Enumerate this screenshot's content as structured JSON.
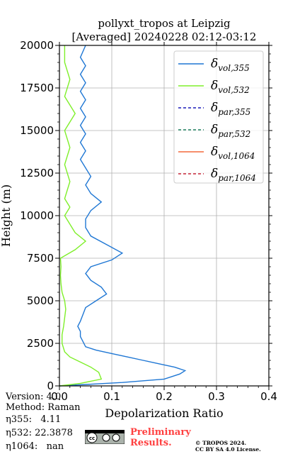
{
  "chart_data": {
    "type": "line",
    "title": "pollyxt_tropos at Leipzig",
    "subtitle": "[Averaged] 20240228 02:12-03:12",
    "xlabel": "Depolarization Ratio",
    "ylabel": "Height (m)",
    "xlim": [
      0,
      0.4
    ],
    "ylim": [
      0,
      20000
    ],
    "x_ticks": [
      "0.0",
      "0.1",
      "0.2",
      "0.3",
      "0.4"
    ],
    "y_ticks": [
      "0",
      "2500",
      "5000",
      "7500",
      "10000",
      "12500",
      "15000",
      "17500",
      "20000"
    ],
    "grid": true,
    "legend_position": "top-right",
    "series": [
      {
        "name": "vol,355",
        "color": "#1f77d4",
        "style": "solid",
        "points": [
          [
            0.0,
            0
          ],
          [
            0.12,
            200
          ],
          [
            0.2,
            400
          ],
          [
            0.23,
            700
          ],
          [
            0.24,
            900
          ],
          [
            0.22,
            1100
          ],
          [
            0.19,
            1300
          ],
          [
            0.16,
            1500
          ],
          [
            0.13,
            1700
          ],
          [
            0.1,
            1900
          ],
          [
            0.07,
            2100
          ],
          [
            0.05,
            2300
          ],
          [
            0.045,
            2600
          ],
          [
            0.04,
            2900
          ],
          [
            0.04,
            3200
          ],
          [
            0.035,
            3500
          ],
          [
            0.04,
            3800
          ],
          [
            0.045,
            4200
          ],
          [
            0.05,
            4600
          ],
          [
            0.07,
            5000
          ],
          [
            0.09,
            5400
          ],
          [
            0.08,
            5800
          ],
          [
            0.06,
            6200
          ],
          [
            0.05,
            6600
          ],
          [
            0.06,
            7000
          ],
          [
            0.1,
            7400
          ],
          [
            0.12,
            7800
          ],
          [
            0.09,
            8300
          ],
          [
            0.06,
            8800
          ],
          [
            0.05,
            9300
          ],
          [
            0.05,
            9800
          ],
          [
            0.06,
            10300
          ],
          [
            0.08,
            10800
          ],
          [
            0.06,
            11300
          ],
          [
            0.05,
            11800
          ],
          [
            0.06,
            12300
          ],
          [
            0.05,
            12800
          ],
          [
            0.04,
            13300
          ],
          [
            0.05,
            13800
          ],
          [
            0.04,
            14300
          ],
          [
            0.05,
            14800
          ],
          [
            0.04,
            15300
          ],
          [
            0.05,
            15800
          ],
          [
            0.04,
            16300
          ],
          [
            0.05,
            16800
          ],
          [
            0.04,
            17300
          ],
          [
            0.05,
            17800
          ],
          [
            0.04,
            18300
          ],
          [
            0.05,
            18800
          ],
          [
            0.04,
            19300
          ],
          [
            0.05,
            20000
          ]
        ]
      },
      {
        "name": "vol,532",
        "color": "#7fef2a",
        "style": "solid",
        "points": [
          [
            0.0,
            0
          ],
          [
            0.04,
            150
          ],
          [
            0.08,
            400
          ],
          [
            0.075,
            800
          ],
          [
            0.06,
            1100
          ],
          [
            0.04,
            1400
          ],
          [
            0.02,
            1700
          ],
          [
            0.01,
            2000
          ],
          [
            0.005,
            2500
          ],
          [
            0.005,
            3000
          ],
          [
            0.008,
            3500
          ],
          [
            0.01,
            4000
          ],
          [
            0.012,
            4500
          ],
          [
            0.01,
            5000
          ],
          [
            0.005,
            5500
          ],
          [
            0.003,
            6000
          ],
          [
            0.002,
            6500
          ],
          [
            0.003,
            7000
          ],
          [
            0.002,
            7500
          ],
          [
            0.03,
            8000
          ],
          [
            0.05,
            8500
          ],
          [
            0.03,
            9000
          ],
          [
            0.02,
            9500
          ],
          [
            0.01,
            10000
          ],
          [
            0.02,
            10500
          ],
          [
            0.01,
            11000
          ],
          [
            0.02,
            12000
          ],
          [
            0.01,
            13000
          ],
          [
            0.02,
            14000
          ],
          [
            0.01,
            15000
          ],
          [
            0.03,
            16000
          ],
          [
            0.01,
            17000
          ],
          [
            0.02,
            18000
          ],
          [
            0.01,
            19000
          ],
          [
            0.01,
            20000
          ]
        ]
      },
      {
        "name": "par,355",
        "color": "#1c1cb8",
        "style": "dashed",
        "points": []
      },
      {
        "name": "par,532",
        "color": "#1f7f5f",
        "style": "dashed",
        "points": []
      },
      {
        "name": "vol,1064",
        "color": "#f46a3c",
        "style": "solid",
        "points": []
      },
      {
        "name": "par,1064",
        "color": "#c8283a",
        "style": "dashed",
        "points": []
      }
    ]
  },
  "footer": {
    "version": "Version: 4.0",
    "method": "Method: Raman",
    "eta355": "η355:   4.11",
    "eta532": "η532: 22.3878",
    "eta1064": "η1064:   nan",
    "preliminary_line1": "Preliminary",
    "preliminary_line2": "Results.",
    "copyright_line1": "© TROPOS 2024.",
    "copyright_line2": "CC BY SA 4.0 License."
  }
}
